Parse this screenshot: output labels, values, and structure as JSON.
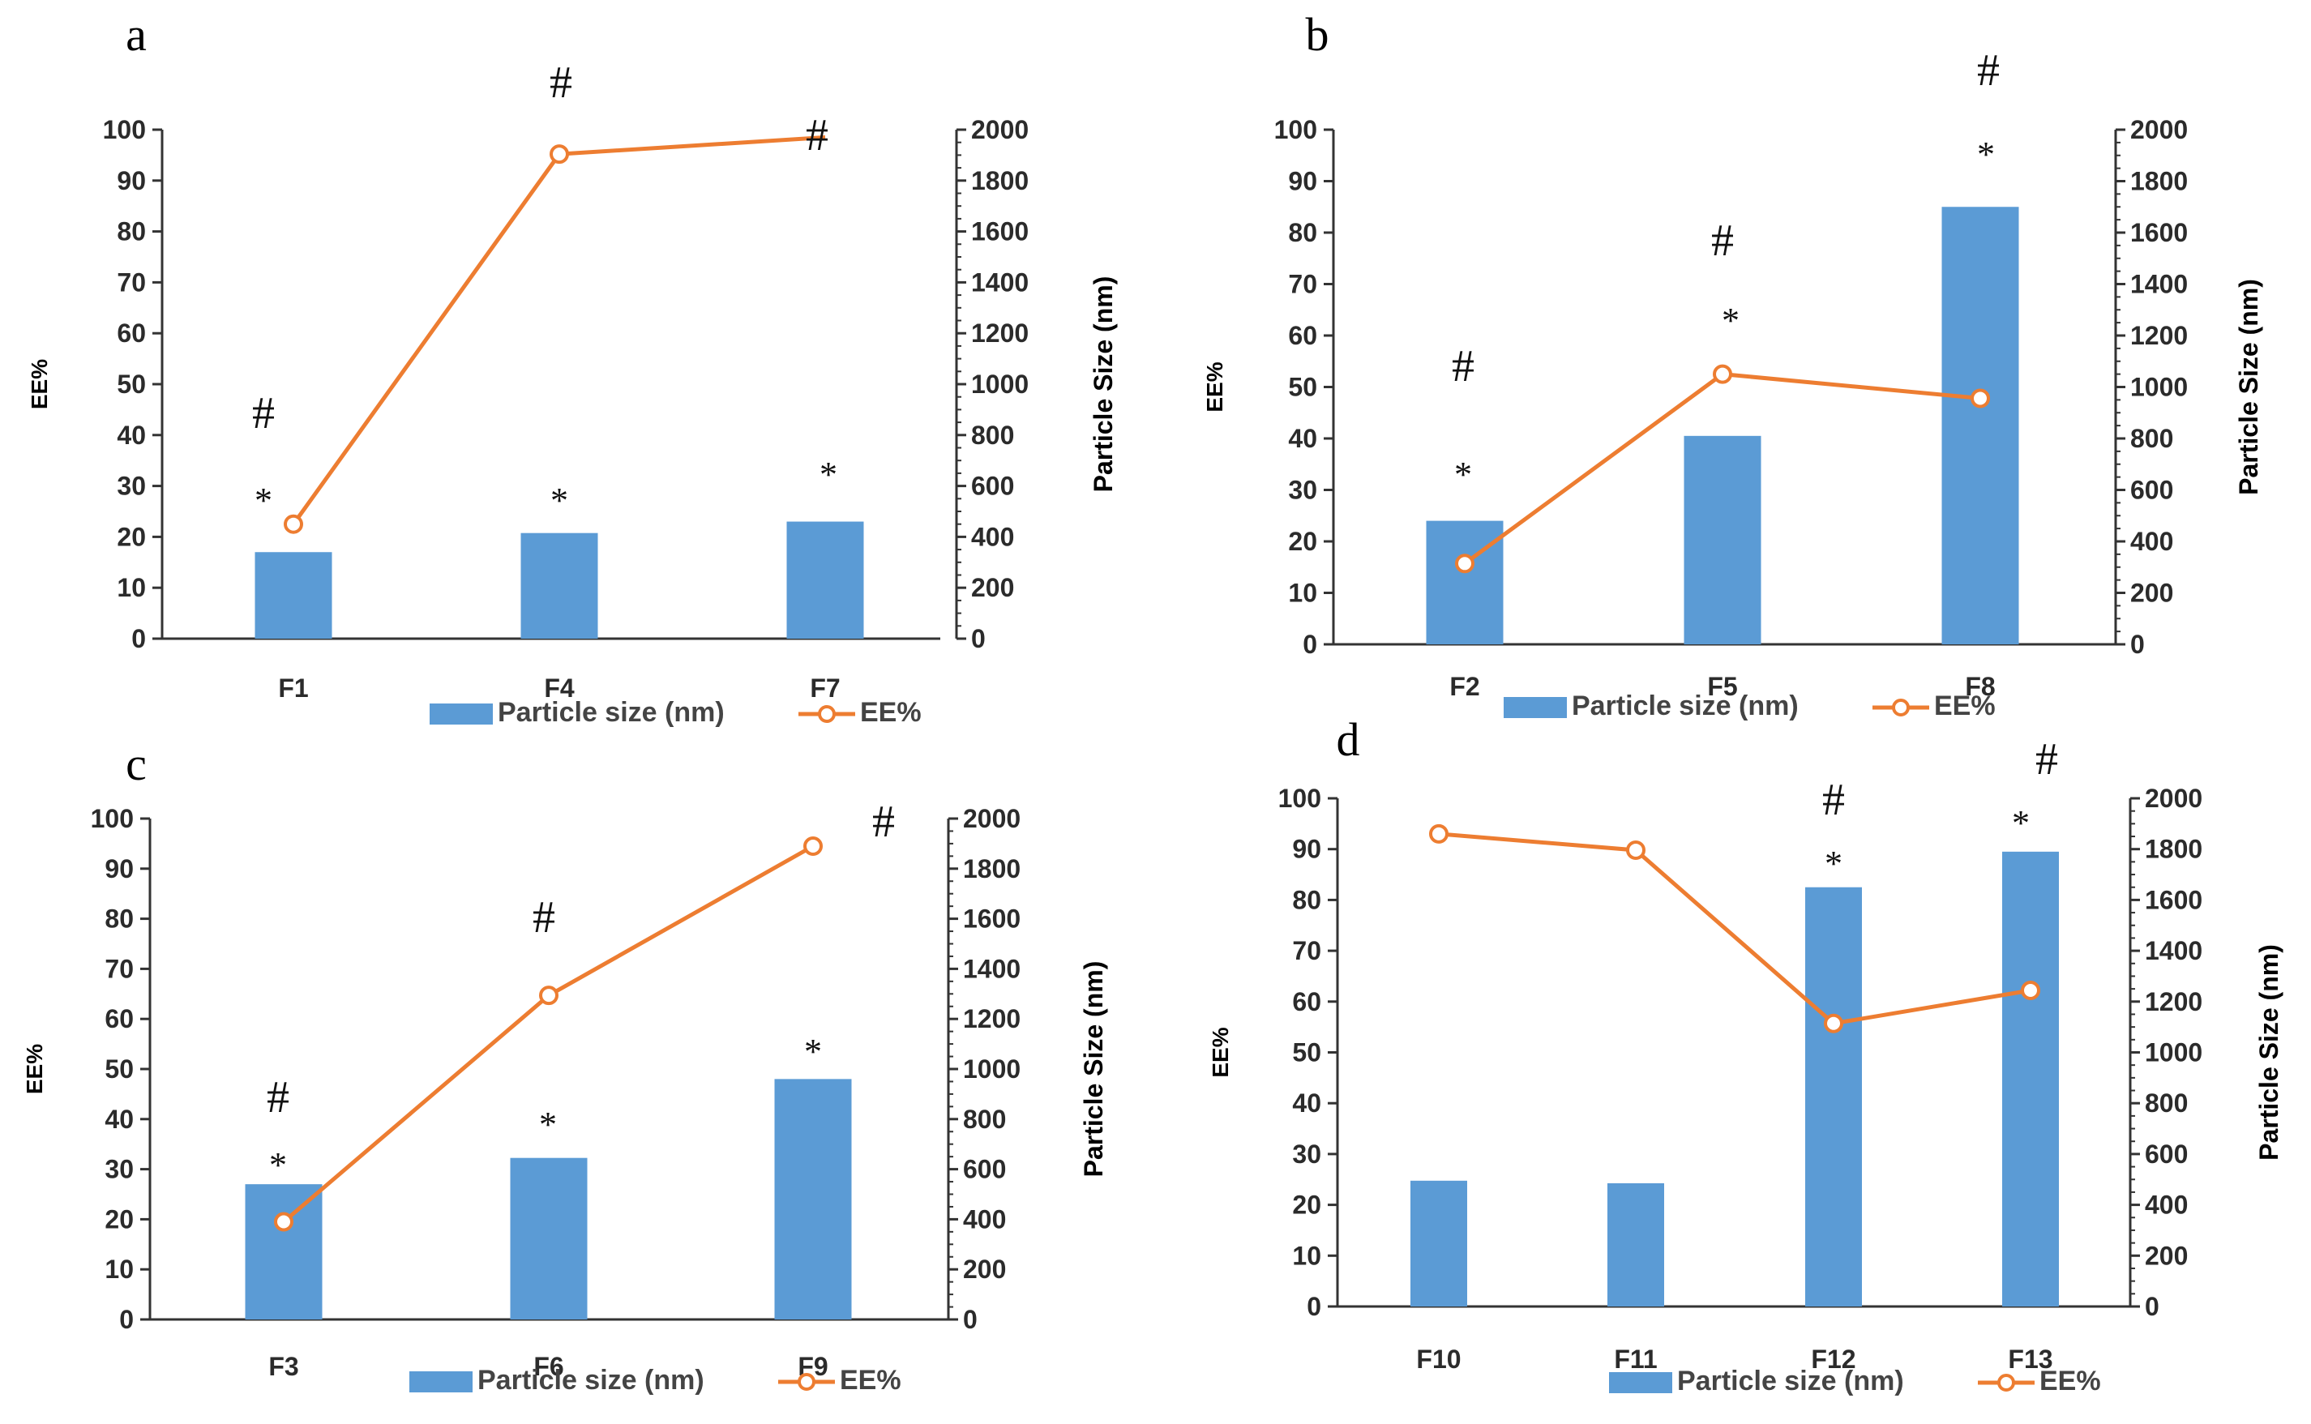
{
  "colors": {
    "bar": "#5b9bd5",
    "line": "#ed7d31",
    "axis": "#333333"
  },
  "legend": {
    "bar_label": "Particle size (nm)",
    "line_label": "EE%"
  },
  "chart_data": [
    {
      "type": "bar+line",
      "panel_label": "a",
      "categories": [
        "F1",
        "F4",
        "F7"
      ],
      "ylabel_left": "EE%",
      "ylabel_right": "Particle Size (nm)",
      "ylim_left": [
        0,
        100
      ],
      "ylim_right": [
        0,
        2000
      ],
      "yticks_left": [
        "0",
        "10",
        "20",
        "30",
        "40",
        "50",
        "60",
        "70",
        "80",
        "90",
        "100"
      ],
      "yticks_right": [
        "0",
        "200",
        "400",
        "600",
        "800",
        "1000",
        "1200",
        "1400",
        "1600",
        "1800",
        "2000"
      ],
      "series": [
        {
          "name": "Particle size (nm)",
          "kind": "bar",
          "axis": "right",
          "values": [
            340,
            415,
            460
          ]
        },
        {
          "name": "EE%",
          "kind": "line",
          "axis": "left",
          "values": [
            22.5,
            95.2,
            98.5
          ],
          "markers": [
            true,
            true,
            false
          ]
        }
      ],
      "annotations": [
        {
          "category": "F1",
          "symbols": [
            "#",
            "*"
          ]
        },
        {
          "category": "F4",
          "symbols": [
            "#",
            "*"
          ]
        },
        {
          "category": "F7",
          "symbols": [
            "#",
            "*"
          ]
        }
      ]
    },
    {
      "type": "bar+line",
      "panel_label": "b",
      "categories": [
        "F2",
        "F5",
        "F8"
      ],
      "ylabel_left": "EE%",
      "ylabel_right": "Particle Size (nm)",
      "ylim_left": [
        0,
        100
      ],
      "ylim_right": [
        0,
        2000
      ],
      "yticks_left": [
        "0",
        "10",
        "20",
        "30",
        "40",
        "50",
        "60",
        "70",
        "80",
        "90",
        "100"
      ],
      "yticks_right": [
        "0",
        "200",
        "400",
        "600",
        "800",
        "1000",
        "1200",
        "1400",
        "1600",
        "1800",
        "2000"
      ],
      "series": [
        {
          "name": "Particle size (nm)",
          "kind": "bar",
          "axis": "right",
          "values": [
            480,
            810,
            1700
          ]
        },
        {
          "name": "EE%",
          "kind": "line",
          "axis": "left",
          "values": [
            15.7,
            52.5,
            47.8
          ],
          "markers": [
            true,
            true,
            true
          ]
        }
      ],
      "annotations": [
        {
          "category": "F2",
          "symbols": [
            "#",
            "*"
          ]
        },
        {
          "category": "F5",
          "symbols": [
            "#",
            "*"
          ]
        },
        {
          "category": "F8",
          "symbols": [
            "#",
            "*"
          ]
        }
      ]
    },
    {
      "type": "bar+line",
      "panel_label": "c",
      "categories": [
        "F3",
        "F6",
        "F9"
      ],
      "ylabel_left": "EE%",
      "ylabel_right": "Particle Size (nm)",
      "ylim_left": [
        0,
        100
      ],
      "ylim_right": [
        0,
        2000
      ],
      "yticks_left": [
        "0",
        "10",
        "20",
        "30",
        "40",
        "50",
        "60",
        "70",
        "80",
        "90",
        "100"
      ],
      "yticks_right": [
        "0",
        "200",
        "400",
        "600",
        "800",
        "1000",
        "1200",
        "1400",
        "1600",
        "1800",
        "2000"
      ],
      "series": [
        {
          "name": "Particle size (nm)",
          "kind": "bar",
          "axis": "right",
          "values": [
            540,
            645,
            960
          ]
        },
        {
          "name": "EE%",
          "kind": "line",
          "axis": "left",
          "values": [
            19.5,
            64.7,
            94.5
          ],
          "markers": [
            true,
            true,
            true
          ]
        }
      ],
      "annotations": [
        {
          "category": "F3",
          "symbols": [
            "#",
            "*"
          ]
        },
        {
          "category": "F6",
          "symbols": [
            "#",
            "*"
          ]
        },
        {
          "category": "F9",
          "symbols": [
            "#",
            "*"
          ]
        }
      ]
    },
    {
      "type": "bar+line",
      "panel_label": "d",
      "categories": [
        "F10",
        "F11",
        "F12",
        "F13"
      ],
      "ylabel_left": "EE%",
      "ylabel_right": "Particle Size (nm)",
      "ylim_left": [
        0,
        100
      ],
      "ylim_right": [
        0,
        2000
      ],
      "yticks_left": [
        "0",
        "10",
        "20",
        "30",
        "40",
        "50",
        "60",
        "70",
        "80",
        "90",
        "100"
      ],
      "yticks_right": [
        "0",
        "200",
        "400",
        "600",
        "800",
        "1000",
        "1200",
        "1400",
        "1600",
        "1800",
        "2000"
      ],
      "series": [
        {
          "name": "Particle size (nm)",
          "kind": "bar",
          "axis": "right",
          "values": [
            495,
            485,
            1650,
            1790
          ]
        },
        {
          "name": "EE%",
          "kind": "line",
          "axis": "left",
          "values": [
            93.0,
            89.8,
            55.7,
            62.2
          ],
          "markers": [
            true,
            true,
            true,
            true
          ]
        }
      ],
      "annotations": [
        {
          "category": "F10",
          "symbols": []
        },
        {
          "category": "F11",
          "symbols": []
        },
        {
          "category": "F12",
          "symbols": [
            "#",
            "*"
          ]
        },
        {
          "category": "F13",
          "symbols": [
            "#",
            "*"
          ]
        }
      ]
    }
  ]
}
